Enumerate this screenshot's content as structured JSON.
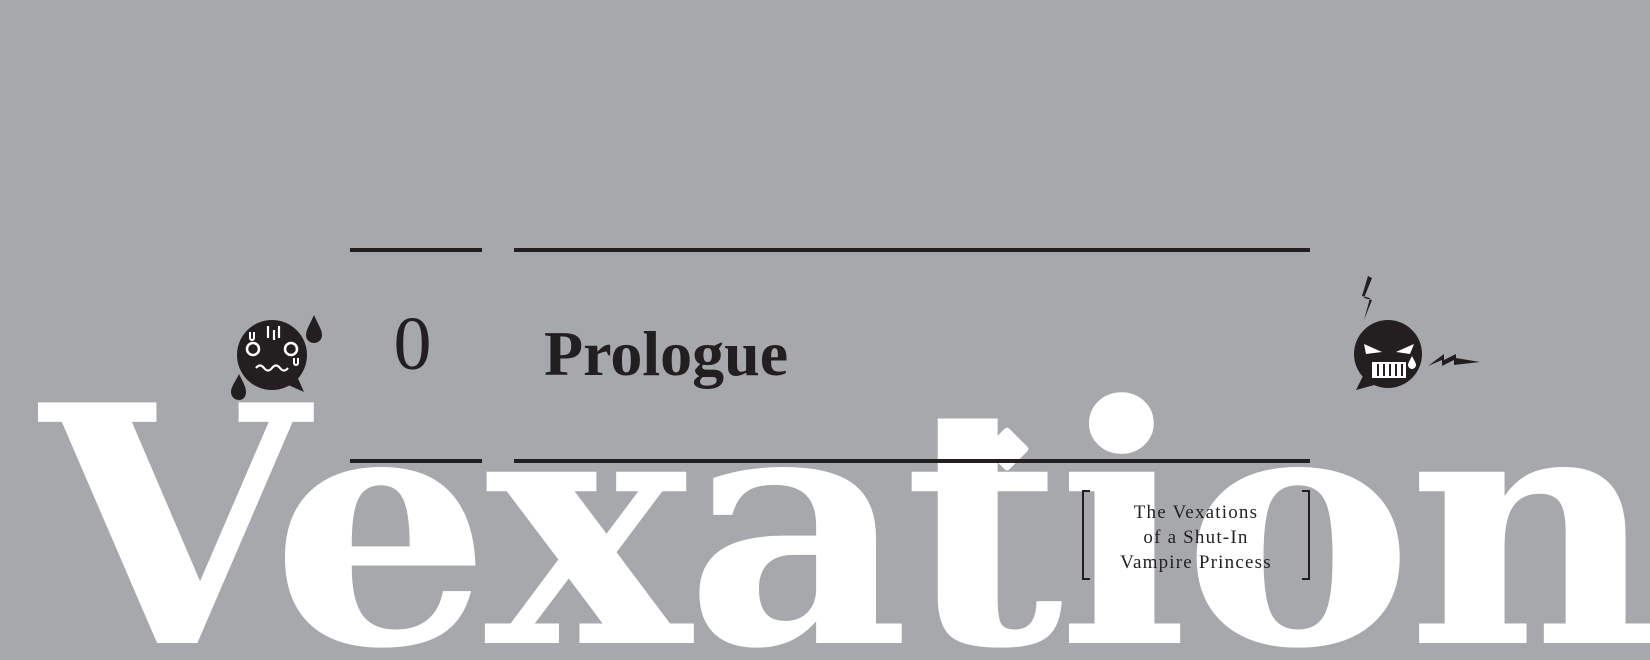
{
  "background_word": "Vexations",
  "chapter": {
    "number": "0",
    "title": "Prologue"
  },
  "book_title": {
    "line1": "The Vexations",
    "line2": "of a Shut-In",
    "line3": "Vampire Princess"
  },
  "icons": {
    "left": "flustered-face-icon",
    "right": "angry-face-icon"
  },
  "colors": {
    "background": "#a7a8ab",
    "ink": "#231f20",
    "accent": "#ffffff"
  }
}
